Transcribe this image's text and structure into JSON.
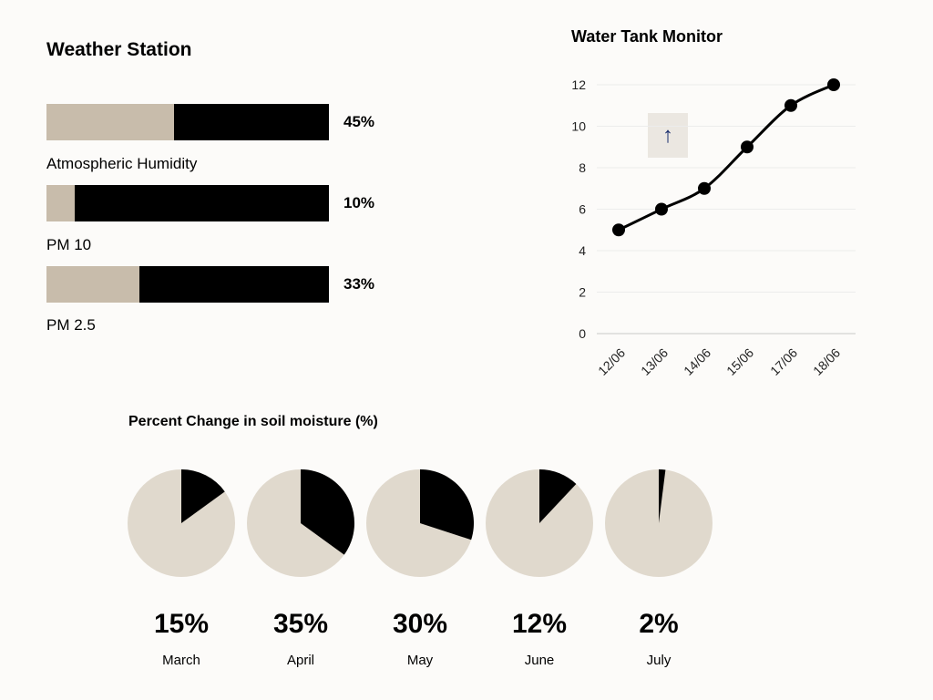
{
  "weather": {
    "title": "Weather Station",
    "bars": [
      {
        "label": "Atmospheric Humidity",
        "value": 45,
        "display": "45%"
      },
      {
        "label": "PM 10",
        "value": 10,
        "display": "10%"
      },
      {
        "label": "PM 2.5",
        "value": 33,
        "display": "33%"
      }
    ]
  },
  "tank": {
    "title": "Water Tank Monitor",
    "arrow_icon": "arrow-up-icon"
  },
  "soil": {
    "title": "Percent Change in soil moisture (%)",
    "items": [
      {
        "label": "March",
        "value": 15,
        "display": "15%"
      },
      {
        "label": "April",
        "value": 35,
        "display": "35%"
      },
      {
        "label": "May",
        "value": 30,
        "display": "30%"
      },
      {
        "label": "June",
        "value": 12,
        "display": "12%"
      },
      {
        "label": "July",
        "value": 2,
        "display": "2%"
      }
    ]
  },
  "colors": {
    "bar_fill": "#c8bcab",
    "pie_bg": "#e0d9cd",
    "dark": "#000000",
    "arrow": "#1a2f6e"
  },
  "chart_data": [
    {
      "type": "bar",
      "title": "Weather Station",
      "categories": [
        "Atmospheric Humidity",
        "PM 10",
        "PM 2.5"
      ],
      "values": [
        45,
        10,
        33
      ],
      "ylim": [
        0,
        100
      ]
    },
    {
      "type": "line",
      "title": "Water Tank Monitor",
      "x": [
        "12/06",
        "13/06",
        "14/06",
        "15/06",
        "17/06",
        "18/06"
      ],
      "values": [
        5,
        6,
        7,
        9,
        11,
        12
      ],
      "ylim": [
        0,
        12
      ],
      "yticks": [
        "0",
        "2",
        "4",
        "6",
        "8",
        "10",
        "12"
      ],
      "grid": true
    },
    {
      "type": "pie",
      "title": "Percent Change in soil moisture (%)",
      "categories": [
        "March",
        "April",
        "May",
        "June",
        "July"
      ],
      "values": [
        15,
        35,
        30,
        12,
        2
      ]
    }
  ]
}
